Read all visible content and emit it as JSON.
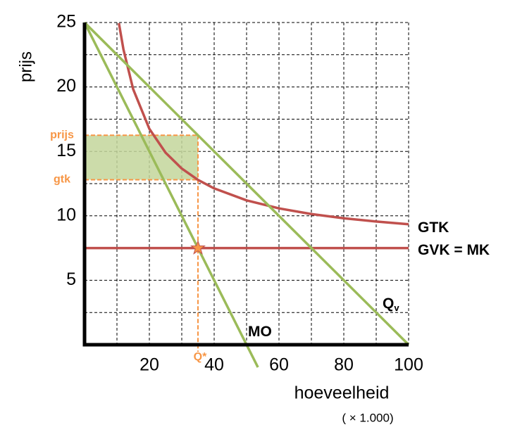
{
  "chart_data": {
    "type": "line",
    "y_label": "prijs",
    "x_label": "hoeveelheid",
    "x_unit_note": "( × 1.000)",
    "xlim": [
      0,
      100
    ],
    "ylim": [
      0,
      25
    ],
    "xticks": [
      20,
      40,
      60,
      80,
      100
    ],
    "yticks": [
      5,
      10,
      15,
      20,
      25
    ],
    "xgrid": [
      10,
      20,
      30,
      40,
      50,
      60,
      70,
      80,
      90
    ],
    "ygrid": [
      2.5,
      5,
      7.5,
      10,
      12.5,
      15,
      17.5,
      20,
      22.5
    ],
    "grid": true,
    "series": [
      {
        "name": "GTK",
        "color": "#c0504d",
        "x": [
          10.6,
          12,
          15,
          20,
          25,
          30,
          35,
          40,
          50,
          60,
          70,
          80,
          90,
          100
        ],
        "y": [
          24.95,
          22.92,
          19.83,
          16.75,
          14.9,
          13.67,
          12.79,
          12.13,
          11.2,
          10.58,
          10.14,
          9.81,
          9.56,
          9.35
        ]
      },
      {
        "name": "GVK = MK",
        "color": "#c0504d",
        "x": [
          0,
          100
        ],
        "y": [
          7.5,
          7.5
        ]
      },
      {
        "name": "Q",
        "subscript": "v",
        "color": "#9bbb59",
        "x": [
          0,
          100
        ],
        "y": [
          25,
          0
        ]
      },
      {
        "name": "MO",
        "color": "#9bbb59",
        "x": [
          0,
          53.5
        ],
        "y": [
          25,
          -1.75
        ]
      }
    ],
    "optimum": {
      "q": 35,
      "price": 16.25,
      "gtk": 12.8,
      "mk": 7.5,
      "price_label": "prijs",
      "gtk_label": "gtk",
      "q_label": "Q*",
      "color": "#f79646",
      "area_color": "#c3d69b"
    }
  }
}
